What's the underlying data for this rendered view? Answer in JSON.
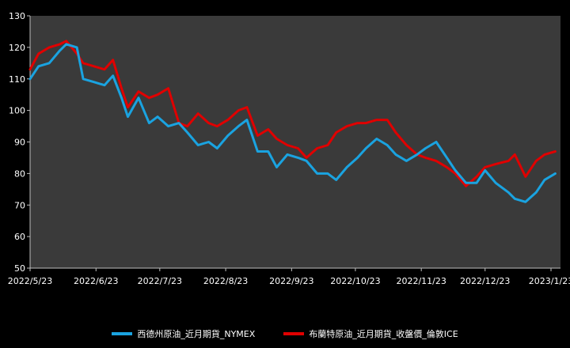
{
  "chart_data": {
    "type": "line",
    "title": "",
    "xlabel": "",
    "ylabel": "",
    "ylim": [
      50,
      130
    ],
    "yticks": [
      50,
      60,
      70,
      80,
      90,
      100,
      110,
      120,
      130
    ],
    "x_tick_labels": [
      "2022/5/23",
      "2022/6/23",
      "2022/7/23",
      "2022/8/23",
      "2022/9/23",
      "2022/10/23",
      "2022/11/23",
      "2022/12/23",
      "2023/1/23"
    ],
    "grid": false,
    "legend_position": "bottom",
    "background_color": "#3a3a3a",
    "x_dates": [
      "2022/5/23",
      "2022/5/27",
      "2022/6/1",
      "2022/6/6",
      "2022/6/9",
      "2022/6/14",
      "2022/6/17",
      "2022/6/22",
      "2022/6/27",
      "2022/7/1",
      "2022/7/5",
      "2022/7/8",
      "2022/7/13",
      "2022/7/18",
      "2022/7/22",
      "2022/7/27",
      "2022/8/1",
      "2022/8/5",
      "2022/8/10",
      "2022/8/15",
      "2022/8/19",
      "2022/8/24",
      "2022/8/29",
      "2022/9/2",
      "2022/9/7",
      "2022/9/12",
      "2022/9/16",
      "2022/9/21",
      "2022/9/26",
      "2022/9/30",
      "2022/10/5",
      "2022/10/10",
      "2022/10/14",
      "2022/10/19",
      "2022/10/24",
      "2022/10/28",
      "2022/11/2",
      "2022/11/7",
      "2022/11/11",
      "2022/11/16",
      "2022/11/21",
      "2022/11/25",
      "2022/11/30",
      "2022/12/5",
      "2022/12/9",
      "2022/12/14",
      "2022/12/19",
      "2022/12/23",
      "2022/12/28",
      "2023/1/3",
      "2023/1/6",
      "2023/1/11",
      "2023/1/16",
      "2023/1/20",
      "2023/1/25"
    ],
    "series": [
      {
        "name": "西德州原油_近月期貨_NYMEX",
        "color": "#1aa3e0",
        "values": [
          110,
          114,
          115,
          119,
          121,
          120,
          110,
          109,
          108,
          111,
          104,
          98,
          104,
          96,
          98,
          95,
          96,
          93,
          89,
          90,
          88,
          92,
          95,
          97,
          87,
          87,
          82,
          86,
          85,
          84,
          80,
          80,
          78,
          82,
          85,
          88,
          91,
          89,
          86,
          84,
          86,
          88,
          90,
          85,
          81,
          77,
          77,
          81,
          77,
          74,
          72,
          71,
          74,
          78,
          80
        ]
      },
      {
        "name": "布蘭特原油_近月期貨_收盤價_倫敦ICE",
        "color": "#e00000",
        "values": [
          113,
          118,
          120,
          121,
          122,
          118,
          115,
          114,
          113,
          116,
          107,
          101,
          106,
          104,
          105,
          107,
          96,
          95,
          99,
          96,
          95,
          97,
          100,
          101,
          92,
          94,
          91,
          89,
          88,
          85,
          88,
          89,
          93,
          95,
          96,
          96,
          97,
          97,
          93,
          89,
          86,
          85,
          84,
          82,
          80,
          76,
          79,
          82,
          83,
          84,
          86,
          79,
          84,
          86,
          87
        ]
      }
    ]
  }
}
